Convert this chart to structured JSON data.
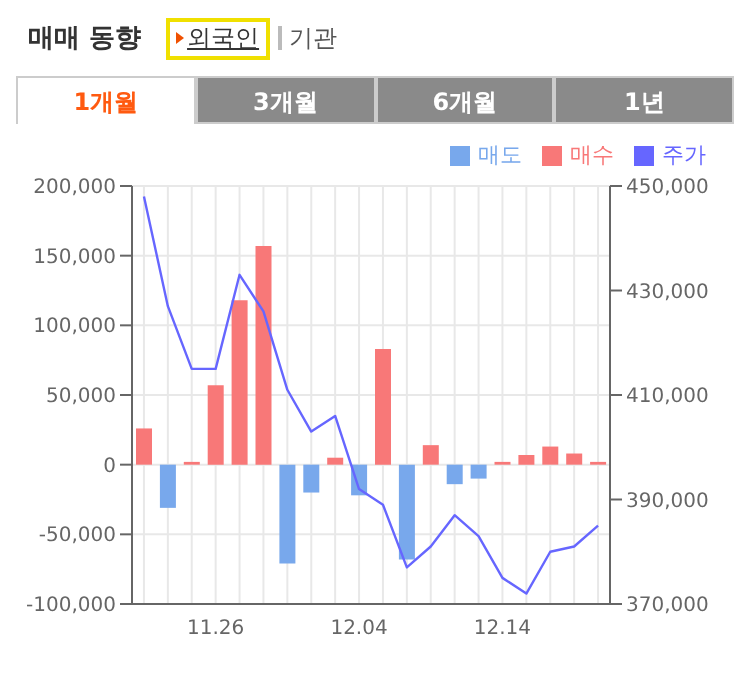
{
  "chart_data": {
    "type": "bar",
    "title": "매매 동향",
    "annotations": [
      "외국인",
      "기관",
      "1개월",
      "3개월",
      "6개월",
      "1년"
    ],
    "categories": [
      null,
      null,
      null,
      "11.26",
      null,
      null,
      null,
      null,
      null,
      "12.04",
      null,
      null,
      null,
      null,
      null,
      "12.14",
      null,
      null,
      null,
      null
    ],
    "stacked": true,
    "series": [
      {
        "name": "매도",
        "color": "#78a8ec",
        "values": [
          null,
          -31000,
          null,
          null,
          null,
          null,
          -71000,
          -20000,
          null,
          -22000,
          null,
          -68000,
          null,
          -14000,
          -10000,
          null,
          null,
          null,
          null,
          null
        ]
      },
      {
        "name": "매수",
        "color": "#f87878",
        "values": [
          26000,
          null,
          2000,
          57000,
          118000,
          157000,
          null,
          null,
          5000,
          null,
          83000,
          null,
          14000,
          null,
          null,
          2000,
          7000,
          13000,
          8000,
          2000
        ]
      },
      {
        "name": "주가",
        "type": "line",
        "axis": "y2",
        "color": "#6666ff",
        "values": [
          448000,
          427000,
          415000,
          415000,
          433000,
          426000,
          411000,
          403000,
          406000,
          392000,
          389000,
          377000,
          381000,
          387000,
          383000,
          375000,
          372000,
          380000,
          381000,
          385000
        ]
      }
    ],
    "ylim": [
      -100000,
      200000
    ],
    "yticks": [
      {
        "value": -100000,
        "label": "-100,000"
      },
      {
        "value": -50000,
        "label": "-50,000"
      },
      0,
      {
        "value": 50000,
        "label": "50,000"
      },
      {
        "value": 100000,
        "label": "100,000"
      },
      {
        "value": 150000,
        "label": "150,000"
      },
      {
        "value": 200000,
        "label": "200,000"
      }
    ],
    "y2lim": [
      370000,
      450000
    ],
    "y2ticks": [
      {
        "value": 370000,
        "label": "370,000"
      },
      {
        "value": 390000,
        "label": "390,000"
      },
      {
        "value": 410000,
        "label": "410,000"
      },
      {
        "value": 430000,
        "label": "430,000"
      },
      {
        "value": 450000,
        "label": "450,000"
      }
    ],
    "grid": true,
    "legend": "top right",
    "marker": "none"
  }
}
